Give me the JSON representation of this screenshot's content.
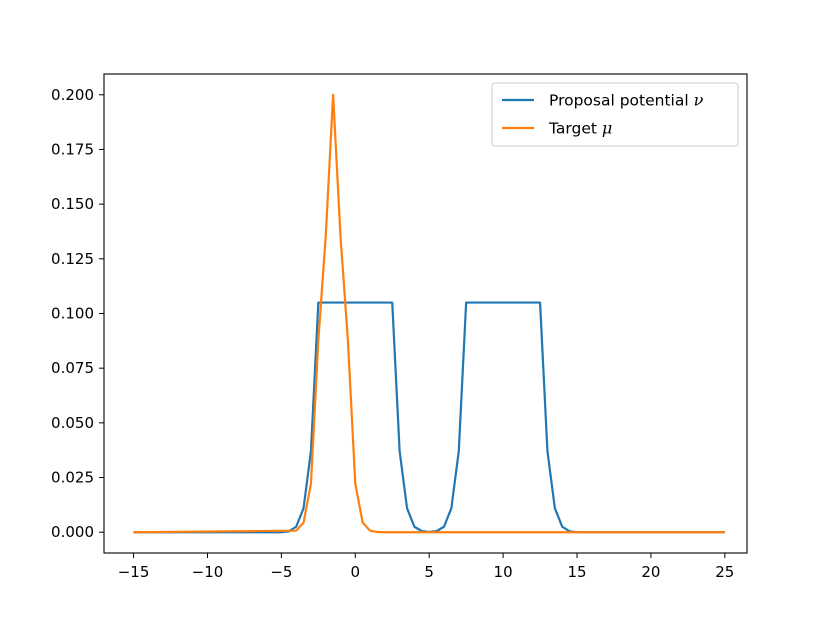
{
  "chart_data": {
    "type": "line",
    "title": "",
    "xlabel": "",
    "ylabel": "",
    "xlim": [
      -17,
      26.5
    ],
    "ylim": [
      -0.0095,
      0.2095
    ],
    "x_ticks": [
      -15,
      -10,
      -5,
      0,
      5,
      10,
      15,
      20,
      25
    ],
    "x_tick_labels": [
      "−15",
      "−10",
      "−5",
      "0",
      "5",
      "10",
      "15",
      "20",
      "25"
    ],
    "y_ticks": [
      0.0,
      0.025,
      0.05,
      0.075,
      0.1,
      0.125,
      0.15,
      0.175,
      0.2
    ],
    "y_tick_labels": [
      "0.000",
      "0.025",
      "0.050",
      "0.075",
      "0.100",
      "0.125",
      "0.150",
      "0.175",
      "0.200"
    ],
    "grid": false,
    "legend_position": "top-right",
    "series": [
      {
        "name": "Proposal potential",
        "symbol": "ν",
        "color": "#1f77b4",
        "x": [
          -15,
          -5,
          -4.5,
          -4,
          -3.5,
          -3,
          -2.5,
          -2.5,
          2.5,
          2.5,
          3,
          3.5,
          4,
          4.5,
          5,
          5.5,
          6,
          6.5,
          7,
          7.5,
          7.5,
          12.5,
          12.5,
          13,
          13.5,
          14,
          14.5,
          15,
          25
        ],
        "y": [
          0,
          0,
          0.0004,
          0.0025,
          0.011,
          0.037,
          0.105,
          0.105,
          0.105,
          0.105,
          0.037,
          0.011,
          0.0025,
          0.0005,
          0.0001,
          0.0005,
          0.0025,
          0.011,
          0.037,
          0.105,
          0.105,
          0.105,
          0.105,
          0.037,
          0.011,
          0.0025,
          0.0004,
          0,
          0
        ]
      },
      {
        "name": "Target",
        "symbol": "μ",
        "color": "#ff7f0e",
        "x": [
          -15,
          -4,
          -3.5,
          -3,
          -2.5,
          -2,
          -1.5,
          -1,
          -0.5,
          0,
          0.5,
          1,
          1.5,
          2,
          2.5,
          3,
          3.5,
          4,
          4.5,
          5,
          5.5,
          6,
          6.5,
          7,
          7.5,
          8,
          8.5,
          9,
          9.5,
          10,
          10.5,
          11,
          11.5,
          12,
          12.5,
          13,
          13.5,
          14,
          25
        ],
        "y": [
          0,
          0.0007,
          0.0044,
          0.0222,
          0.0877,
          0.1353,
          0.2,
          0.1353,
          0.0877,
          0.0222,
          0.0044,
          0.0007,
          0.0001,
          0,
          0,
          0,
          0,
          0,
          0,
          0,
          0,
          0,
          0,
          0,
          0,
          0,
          0,
          0,
          0,
          0,
          0,
          0,
          0,
          0,
          0,
          0,
          0,
          0,
          0
        ]
      }
    ]
  }
}
